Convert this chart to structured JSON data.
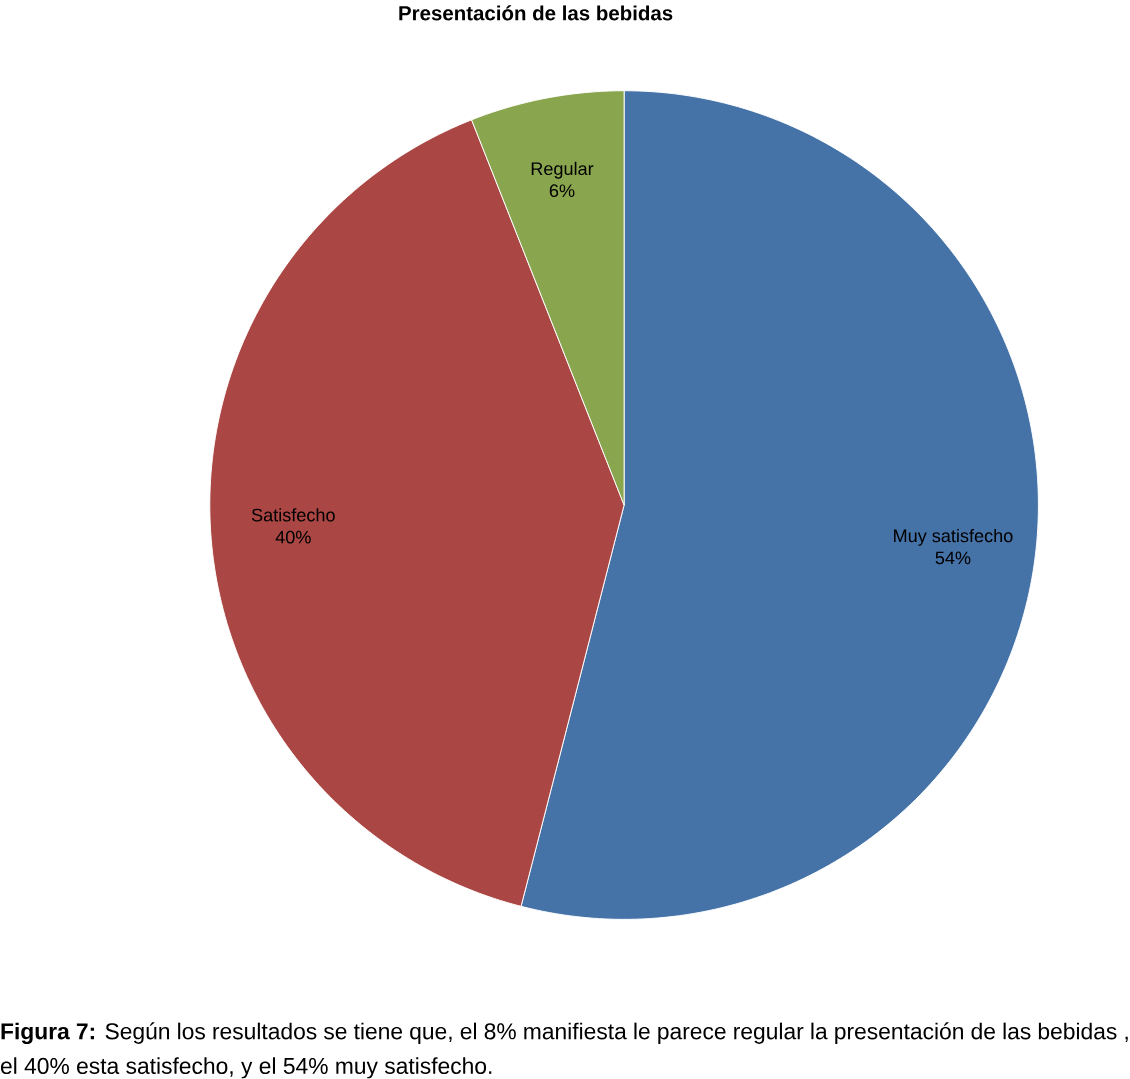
{
  "chart_data": {
    "type": "pie",
    "title": "Presentación de las bebidas",
    "categories": [
      "Muy satisfecho",
      "Satisfecho",
      "Regular"
    ],
    "values": [
      54,
      40,
      6
    ],
    "colors": [
      "#4572a7",
      "#aa4643",
      "#89a54e"
    ],
    "value_labels": [
      "54%",
      "40%",
      "6%"
    ],
    "annotations": [
      "**Figura 7:** Según los resultados se tiene que, el 8% manifiesta le parece regular la presentación de las bebidas , el 40% esta satisfecho, y el 54% muy satisfecho."
    ]
  }
}
